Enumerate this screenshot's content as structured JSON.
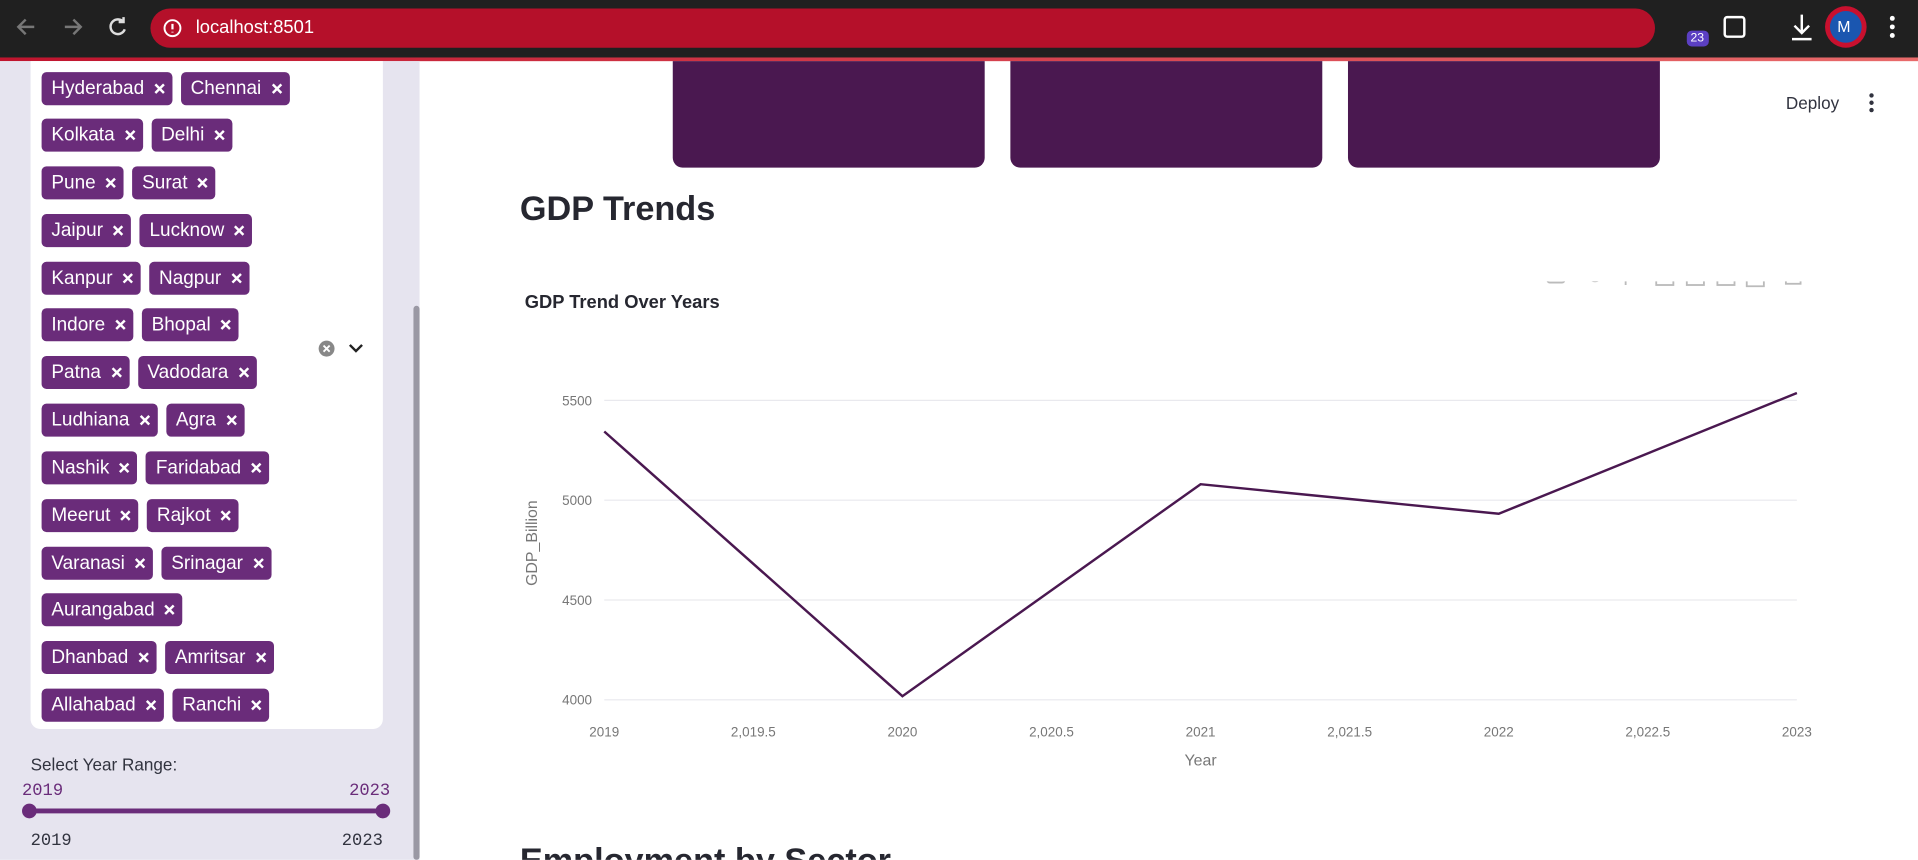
{
  "browser": {
    "url": "localhost:8501",
    "profile": "M",
    "badge": "23"
  },
  "sidebar": {
    "cities": [
      [
        "Hyderabad",
        "Chennai"
      ],
      [
        "Kolkata",
        "Delhi"
      ],
      [
        "Pune",
        "Surat"
      ],
      [
        "Jaipur",
        "Lucknow"
      ],
      [
        "Kanpur",
        "Nagpur"
      ],
      [
        "Indore",
        "Bhopal"
      ],
      [
        "Patna",
        "Vadodara"
      ],
      [
        "Ludhiana",
        "Agra"
      ],
      [
        "Nashik",
        "Faridabad"
      ],
      [
        "Meerut",
        "Rajkot"
      ],
      [
        "Varanasi",
        "Srinagar"
      ],
      [
        "Aurangabad"
      ],
      [
        "Dhanbad",
        "Amritsar"
      ],
      [
        "Allahabad",
        "Ranchi"
      ]
    ],
    "year_range": {
      "label": "Select Year Range:",
      "min": 2019,
      "max": 2023,
      "value": [
        2019,
        2023
      ]
    }
  },
  "header": {
    "deploy": "Deploy"
  },
  "main": {
    "heading": "GDP Trends",
    "next_heading": "Employment by Sector"
  },
  "chart_data": {
    "type": "line",
    "title": "GDP Trend Over Years",
    "x_label": "Year",
    "y_label": "GDP_Billion",
    "x": [
      2019,
      2020,
      2021,
      2022,
      2023
    ],
    "values": [
      5344,
      4018,
      5080,
      4932,
      5537
    ],
    "color": "#4a1850",
    "xlim": [
      2019,
      2023
    ],
    "xticks": [
      2019,
      {
        "value": 2019.5,
        "label": "2,019.5"
      },
      2020,
      {
        "value": 2020.5,
        "label": "2,020.5"
      },
      2021,
      {
        "value": 2021.5,
        "label": "2,021.5"
      },
      2022,
      {
        "value": 2022.5,
        "label": "2,022.5"
      },
      2023
    ],
    "ylim": [
      3970,
      5600
    ],
    "yticks": [
      4000,
      4500,
      5000,
      5500
    ],
    "grid": true
  }
}
